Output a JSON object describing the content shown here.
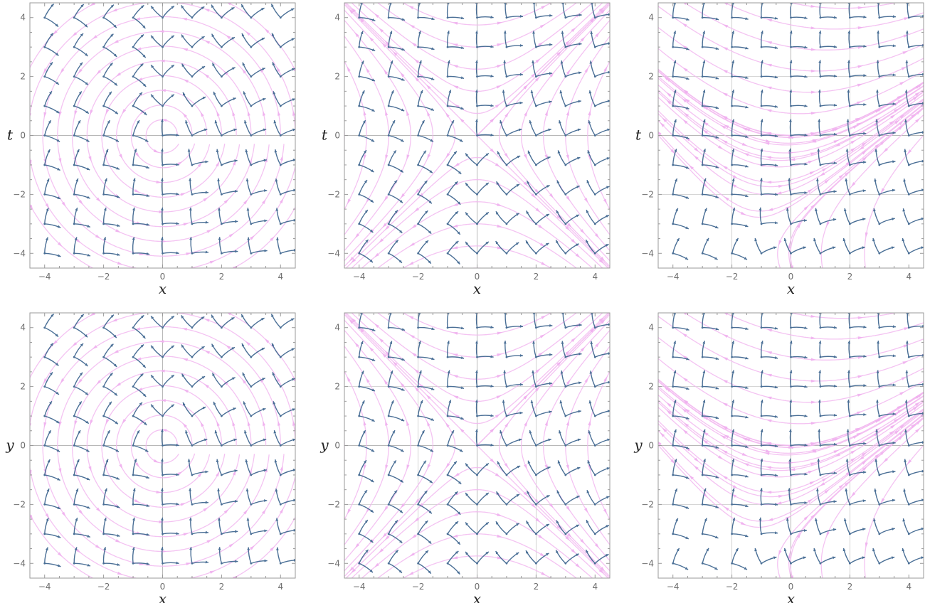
{
  "colors": {
    "frame": "#9a9a9a",
    "stream": "#f2b8f0",
    "vector": "#4a6f96",
    "tick_text": "#6e6e6e"
  },
  "chart_data": [
    {
      "type": "vector-field",
      "panel": "top-left",
      "field": "rotation",
      "xlabel": "x",
      "ylabel": "t",
      "xlim": [
        -4.5,
        4.5
      ],
      "ylim": [
        -4.5,
        4.5
      ],
      "xticks": [
        -4,
        -2,
        0,
        2,
        4
      ],
      "yticks": [
        -4,
        -2,
        0,
        2,
        4
      ],
      "xtick_labels": [
        "−4",
        "−2",
        "0",
        "2",
        "4"
      ],
      "ytick_labels": [
        "−4",
        "−2",
        "0",
        "2",
        "4"
      ],
      "grid_lines": [
        0
      ],
      "sample_grid": [
        -4,
        -3,
        -2,
        -1,
        0,
        1,
        2,
        3,
        4
      ],
      "streamlines": "concentric circles about the origin"
    },
    {
      "type": "vector-field",
      "panel": "top-middle",
      "field": "shear-boost",
      "xlabel": "x",
      "ylabel": "t",
      "xlim": [
        -4.5,
        4.5
      ],
      "ylim": [
        -4.5,
        4.5
      ],
      "xticks": [
        -4,
        -2,
        0,
        2,
        4
      ],
      "yticks": [
        -4,
        -2,
        0,
        2,
        4
      ],
      "xtick_labels": [
        "−4",
        "−2",
        "0",
        "2",
        "4"
      ],
      "ytick_labels": [
        "−4",
        "−2",
        "0",
        "2",
        "4"
      ],
      "grid_lines": [
        0
      ],
      "sample_grid": [
        -4,
        -3,
        -2,
        -1,
        0,
        1,
        2,
        3,
        4
      ],
      "streamlines": "hyperbolic curves"
    },
    {
      "type": "vector-field",
      "panel": "top-right",
      "field": "shifted",
      "xlabel": "x",
      "ylabel": "t",
      "xlim": [
        -4.5,
        4.5
      ],
      "ylim": [
        -4.5,
        4.5
      ],
      "xticks": [
        -4,
        -2,
        0,
        2,
        4
      ],
      "yticks": [
        -4,
        -2,
        0,
        2,
        4
      ],
      "xtick_labels": [
        "−4",
        "−2",
        "0",
        "2",
        "4"
      ],
      "ytick_labels": [
        "−4",
        "−2",
        "0",
        "2",
        "4"
      ],
      "grid_lines": [
        -2,
        0,
        2
      ],
      "sample_grid": [
        -4,
        -3,
        -2,
        -1,
        0,
        1,
        2,
        3,
        4
      ],
      "streamlines": "saddle-like flow"
    },
    {
      "type": "vector-field",
      "panel": "bottom-left",
      "field": "rotation",
      "xlabel": "x",
      "ylabel": "y",
      "xlim": [
        -4.5,
        4.5
      ],
      "ylim": [
        -4.5,
        4.5
      ],
      "xticks": [
        -4,
        -2,
        0,
        2,
        4
      ],
      "yticks": [
        -4,
        -2,
        0,
        2,
        4
      ],
      "xtick_labels": [
        "−4",
        "−2",
        "0",
        "2",
        "4"
      ],
      "ytick_labels": [
        "−4",
        "−2",
        "0",
        "2",
        "4"
      ],
      "grid_lines": [
        0
      ],
      "sample_grid": [
        -4,
        -3,
        -2,
        -1,
        0,
        1,
        2,
        3,
        4
      ],
      "streamlines": "concentric circles about the origin"
    },
    {
      "type": "vector-field",
      "panel": "bottom-middle",
      "field": "shear-boost",
      "xlabel": "x",
      "ylabel": "y",
      "xlim": [
        -4.5,
        4.5
      ],
      "ylim": [
        -4.5,
        4.5
      ],
      "xticks": [
        -4,
        -2,
        0,
        2,
        4
      ],
      "yticks": [
        -4,
        -2,
        0,
        2,
        4
      ],
      "xtick_labels": [
        "−4",
        "−2",
        "0",
        "2",
        "4"
      ],
      "ytick_labels": [
        "−4",
        "−2",
        "0",
        "2",
        "4"
      ],
      "grid_lines": [
        -2,
        0,
        2
      ],
      "sample_grid": [
        -4,
        -3,
        -2,
        -1,
        0,
        1,
        2,
        3,
        4
      ],
      "streamlines": "hyperbolic curves"
    },
    {
      "type": "vector-field",
      "panel": "bottom-right",
      "field": "shifted",
      "xlabel": "x",
      "ylabel": "y",
      "xlim": [
        -4.5,
        4.5
      ],
      "ylim": [
        -4.5,
        4.5
      ],
      "xticks": [
        -4,
        -2,
        0,
        2,
        4
      ],
      "yticks": [
        -4,
        -2,
        0,
        2,
        4
      ],
      "xtick_labels": [
        "−4",
        "−2",
        "0",
        "2",
        "4"
      ],
      "ytick_labels": [
        "−4",
        "−2",
        "0",
        "2",
        "4"
      ],
      "grid_lines": [
        -2,
        0,
        2
      ],
      "sample_grid": [
        -4,
        -3,
        -2,
        -1,
        0,
        1,
        2,
        3,
        4
      ],
      "streamlines": "saddle-like flow"
    }
  ]
}
